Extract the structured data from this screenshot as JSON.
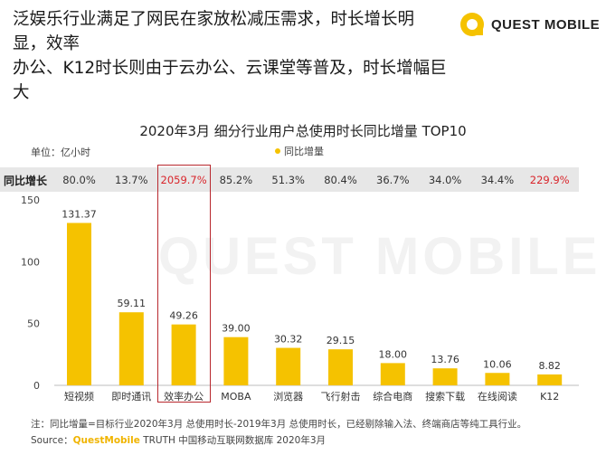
{
  "header": {
    "headline_line1": "泛娱乐行业满足了网民在家放松减压需求，时长增长明显，效率",
    "headline_line2": "办公、K12时长则由于云办公、云课堂等普及，时长增幅巨大",
    "brand": "QUEST MOBILE"
  },
  "watermark": "QUEST MOBILE",
  "chart_data": {
    "type": "bar",
    "title": "2020年3月 细分行业用户总使用时长同比增量 TOP10",
    "unit": "单位：亿小时",
    "legend": [
      "同比增量"
    ],
    "legend_position": "top-center",
    "categories": [
      "短视频",
      "即时通讯",
      "效率办公",
      "MOBA",
      "浏览器",
      "飞行射击",
      "综合电商",
      "搜索下载",
      "在线阅读",
      "K12"
    ],
    "series": [
      {
        "name": "同比增量",
        "values": [
          131.37,
          59.11,
          49.26,
          39.0,
          30.32,
          29.15,
          18.0,
          13.76,
          10.06,
          8.82
        ],
        "color": "#f5c200"
      }
    ],
    "value_labels": [
      "131.37",
      "59.11",
      "49.26",
      "39.00",
      "30.32",
      "29.15",
      "18.00",
      "13.76",
      "10.06",
      "8.82"
    ],
    "ylim": [
      0,
      150
    ],
    "yticks": [
      0,
      50,
      100,
      150
    ],
    "grid": false,
    "growth_row": {
      "label": "同比增长",
      "values": [
        "80.0%",
        "13.7%",
        "2059.7%",
        "85.2%",
        "51.3%",
        "80.4%",
        "36.7%",
        "34.0%",
        "34.4%",
        "229.9%"
      ],
      "highlighted": [
        2,
        9
      ],
      "highlight_color": "#d9252b"
    },
    "boxed_category_index": 2
  },
  "footer": {
    "note": "注：同比增量=目标行业2020年3月 总使用时长-2019年3月 总使用时长，已经剔除输入法、终端商店等纯工具行业。",
    "source_prefix": "Source：",
    "source_brand": "QuestMobile",
    "source_rest": " TRUTH 中国移动互联网数据库 2020年3月"
  }
}
